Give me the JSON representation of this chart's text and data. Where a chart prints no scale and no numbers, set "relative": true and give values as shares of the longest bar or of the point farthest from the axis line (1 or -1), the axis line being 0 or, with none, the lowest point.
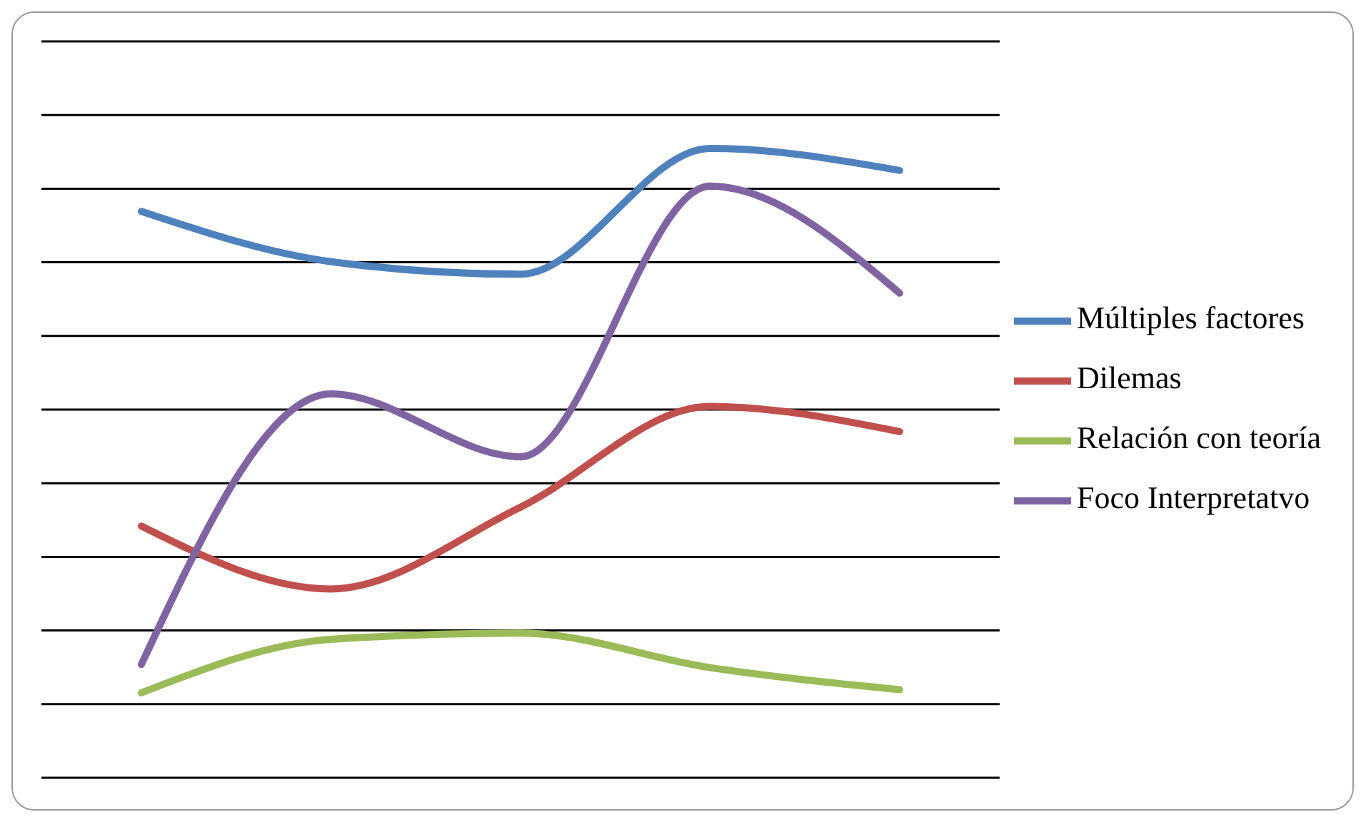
{
  "chart_data": {
    "type": "line",
    "relative": true,
    "categories": [
      null,
      null,
      null,
      null,
      null
    ],
    "grid": "y",
    "legend": "right",
    "marker": "none",
    "line_style": "solid",
    "series": [
      {
        "name": "Múltiples factores",
        "color": "#4f81bd",
        "values": [
          0.9,
          0.82,
          0.8,
          1,
          0.965
        ]
      },
      {
        "name": "Dilemas",
        "color": "#c0504d",
        "values": [
          0.4,
          0.3,
          0.43,
          0.59,
          0.55
        ]
      },
      {
        "name": "Relación con teoría",
        "color": "#9bbb59",
        "values": [
          0.135,
          0.22,
          0.23,
          0.175,
          0.14
        ]
      },
      {
        "name": "Foco Interpretatvo",
        "color": "#8064a2",
        "values": [
          0.18,
          0.61,
          0.51,
          0.94,
          0.77
        ]
      }
    ]
  }
}
